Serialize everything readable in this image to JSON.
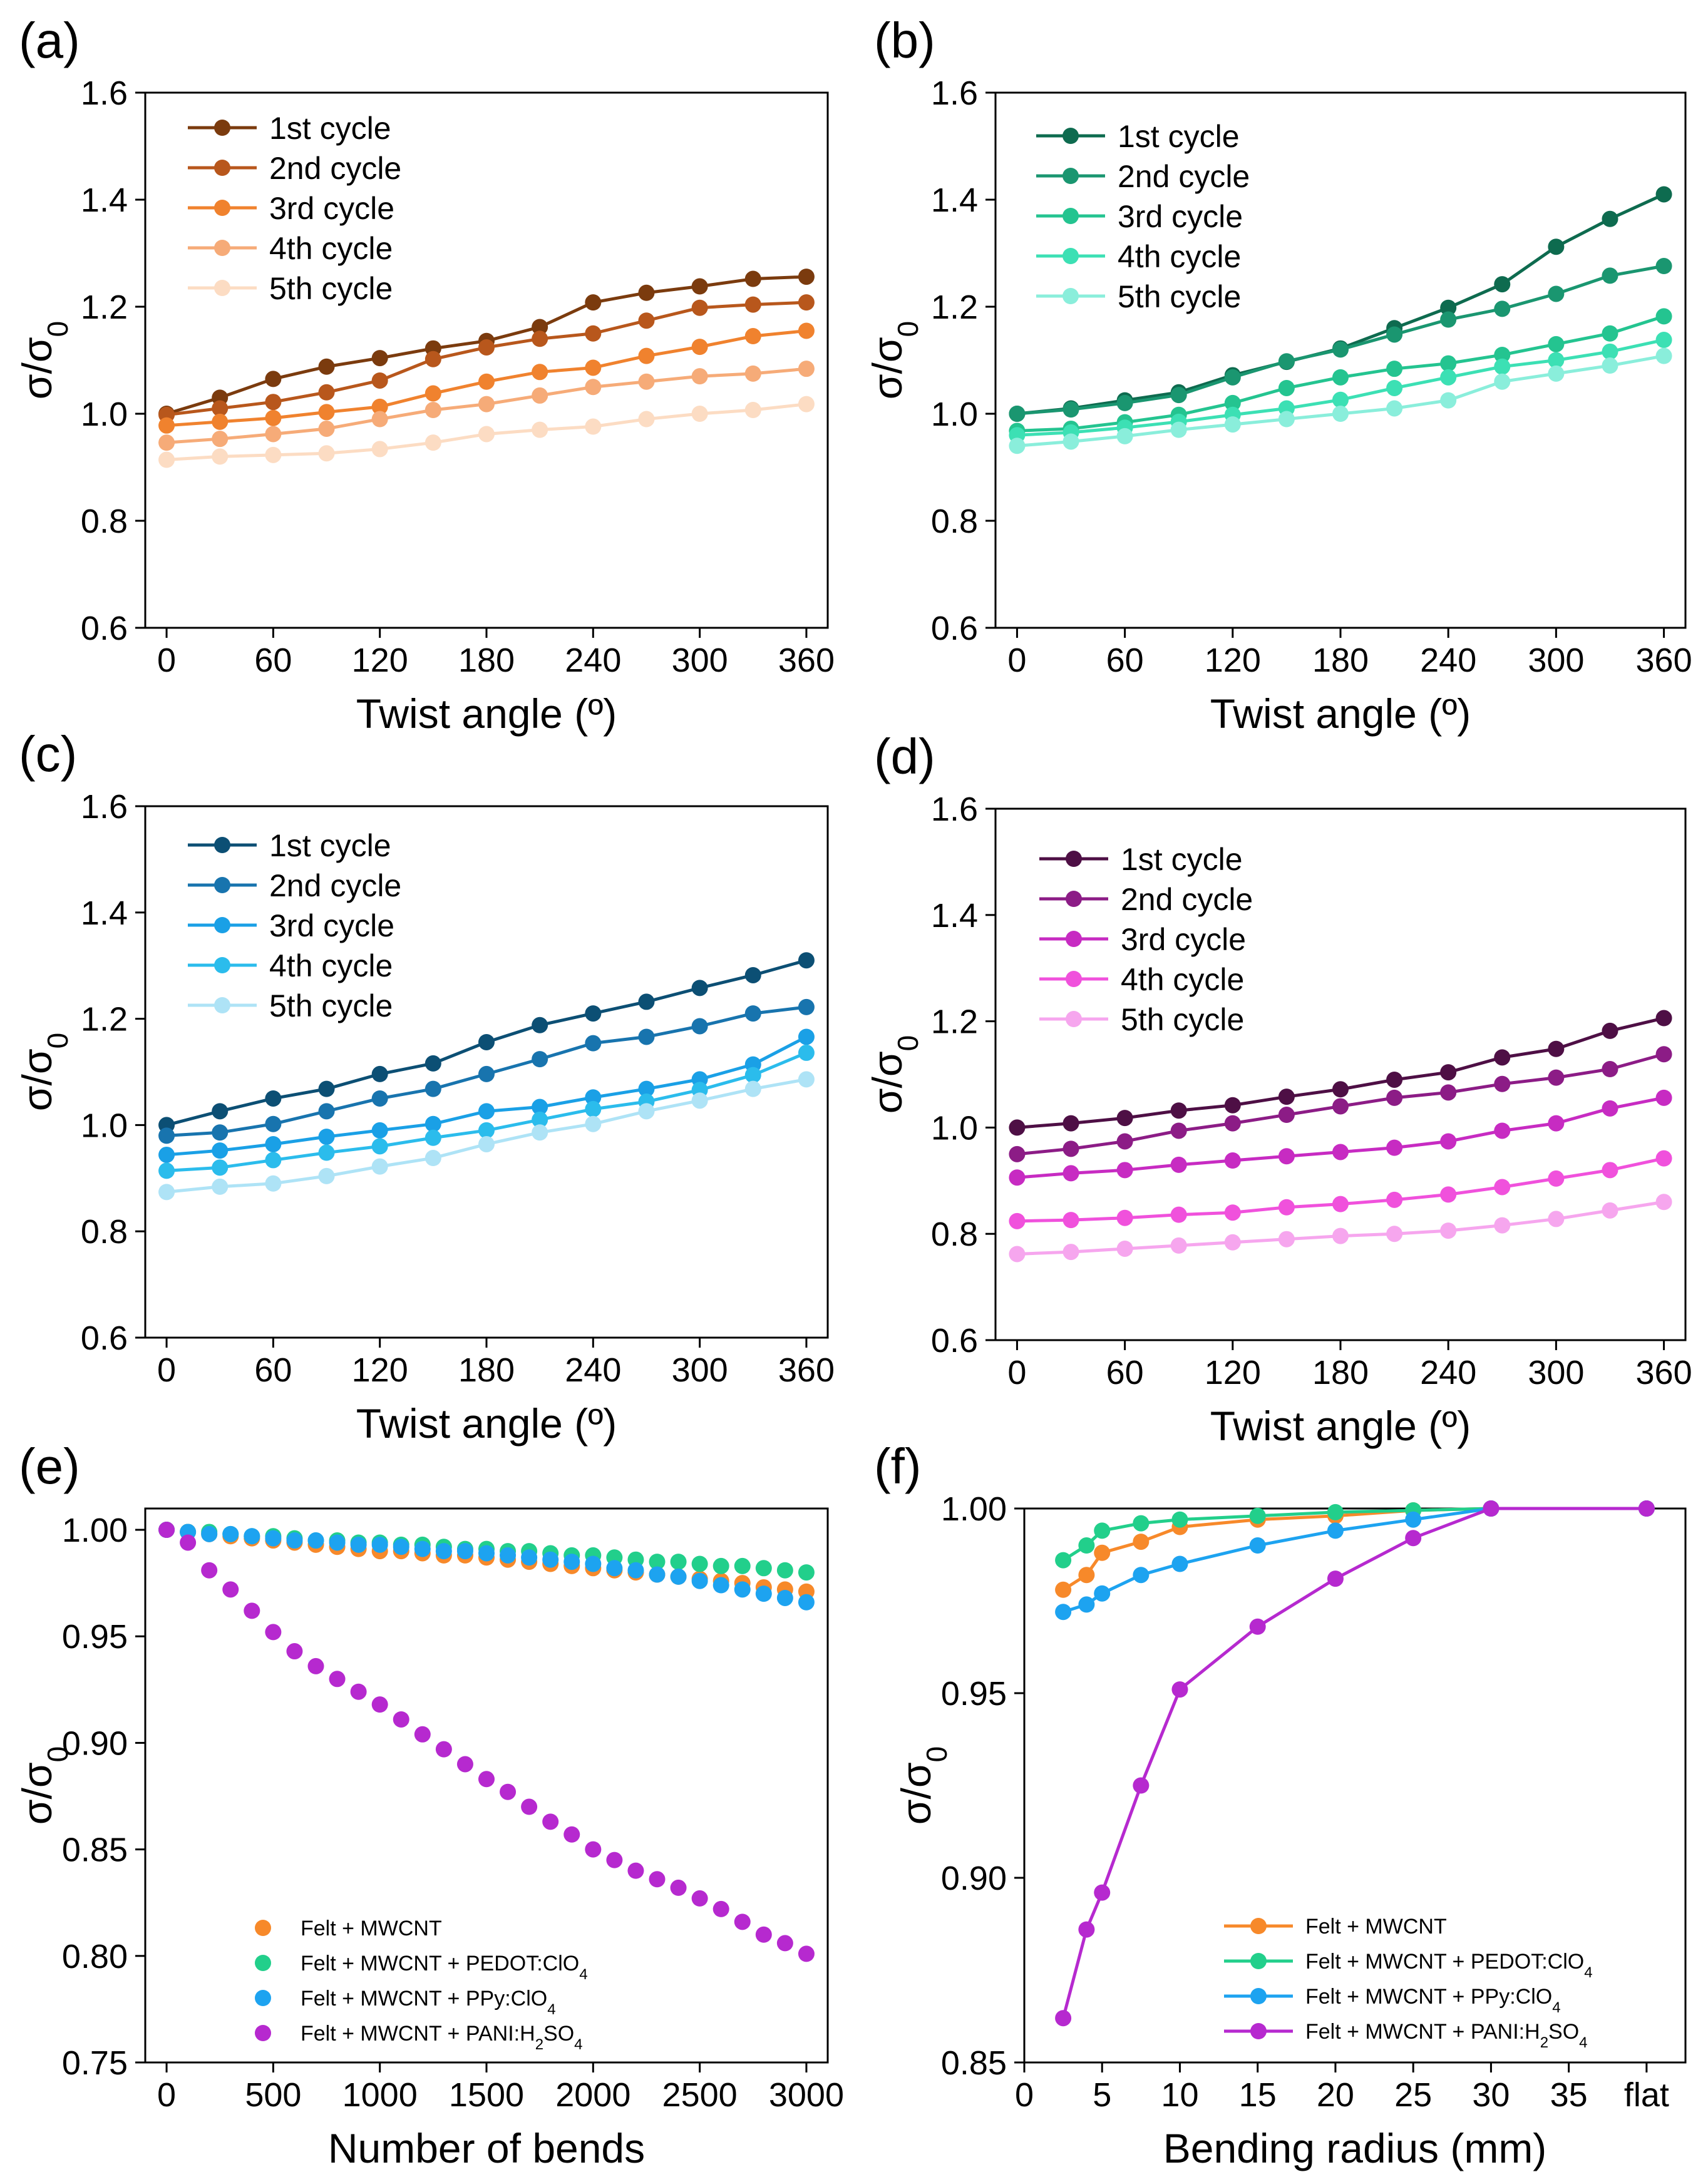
{
  "chart_data": [
    {
      "panel": "(a)",
      "type": "line",
      "xlabel": "Twist angle (º)",
      "ylabel": "σ/σ0",
      "xlim": [
        -12,
        372
      ],
      "ylim": [
        0.6,
        1.6
      ],
      "xticks": [
        0,
        60,
        120,
        180,
        240,
        300,
        360
      ],
      "yticks": [
        0.6,
        0.8,
        1.0,
        1.2,
        1.4,
        1.6
      ],
      "ytick_labels": [
        "0.6",
        "0.8",
        "1.0",
        "1.2",
        "1.4",
        "1.6"
      ],
      "legend_position": "top-left",
      "x": [
        0,
        30,
        60,
        90,
        120,
        150,
        180,
        210,
        240,
        270,
        300,
        330,
        360
      ],
      "series": [
        {
          "name": "1st cycle",
          "color": "#7b3b0e",
          "values": [
            1.0,
            1.03,
            1.065,
            1.088,
            1.104,
            1.122,
            1.136,
            1.162,
            1.208,
            1.226,
            1.238,
            1.252,
            1.256
          ]
        },
        {
          "name": "2nd cycle",
          "color": "#b8571c",
          "values": [
            0.998,
            1.01,
            1.022,
            1.04,
            1.062,
            1.102,
            1.124,
            1.14,
            1.15,
            1.174,
            1.198,
            1.204,
            1.208
          ]
        },
        {
          "name": "3rd cycle",
          "color": "#f0822e",
          "values": [
            0.978,
            0.985,
            0.992,
            1.003,
            1.013,
            1.038,
            1.06,
            1.078,
            1.086,
            1.108,
            1.125,
            1.145,
            1.155
          ]
        },
        {
          "name": "4th cycle",
          "color": "#f6ab78",
          "values": [
            0.946,
            0.953,
            0.962,
            0.972,
            0.99,
            1.007,
            1.018,
            1.034,
            1.05,
            1.06,
            1.07,
            1.075,
            1.084
          ]
        },
        {
          "name": "5th cycle",
          "color": "#fcdcc3",
          "values": [
            0.914,
            0.92,
            0.923,
            0.926,
            0.934,
            0.946,
            0.962,
            0.97,
            0.976,
            0.99,
            1.0,
            1.007,
            1.018
          ]
        }
      ]
    },
    {
      "panel": "(b)",
      "type": "line",
      "xlabel": "Twist angle (º)",
      "ylabel": "σ/σ0",
      "xlim": [
        -12,
        372
      ],
      "ylim": [
        0.6,
        1.6
      ],
      "xticks": [
        0,
        60,
        120,
        180,
        240,
        300,
        360
      ],
      "yticks": [
        0.6,
        0.8,
        1.0,
        1.2,
        1.4,
        1.6
      ],
      "ytick_labels": [
        "0.6",
        "0.8",
        "1.0",
        "1.2",
        "1.4",
        "1.6"
      ],
      "legend_position": "top-left",
      "x": [
        0,
        30,
        60,
        90,
        120,
        150,
        180,
        210,
        240,
        270,
        300,
        330,
        360
      ],
      "series": [
        {
          "name": "1st cycle",
          "color": "#0e6b4f",
          "values": [
            1.0,
            1.01,
            1.025,
            1.04,
            1.072,
            1.097,
            1.122,
            1.16,
            1.198,
            1.242,
            1.312,
            1.364,
            1.41
          ]
        },
        {
          "name": "2nd cycle",
          "color": "#1a9670",
          "values": [
            1.0,
            1.008,
            1.02,
            1.035,
            1.068,
            1.098,
            1.12,
            1.148,
            1.176,
            1.196,
            1.224,
            1.258,
            1.276
          ]
        },
        {
          "name": "3rd cycle",
          "color": "#24c490",
          "values": [
            0.968,
            0.972,
            0.984,
            0.998,
            1.02,
            1.048,
            1.068,
            1.084,
            1.094,
            1.11,
            1.13,
            1.15,
            1.182
          ]
        },
        {
          "name": "4th cycle",
          "color": "#3ce0b4",
          "values": [
            0.96,
            0.965,
            0.974,
            0.985,
            0.998,
            1.01,
            1.026,
            1.048,
            1.068,
            1.088,
            1.1,
            1.116,
            1.138
          ]
        },
        {
          "name": "5th cycle",
          "color": "#8aeedb",
          "values": [
            0.94,
            0.948,
            0.958,
            0.97,
            0.98,
            0.99,
            1.0,
            1.01,
            1.025,
            1.06,
            1.075,
            1.09,
            1.108
          ]
        }
      ]
    },
    {
      "panel": "(c)",
      "type": "line",
      "xlabel": "Twist angle (º)",
      "ylabel": "σ/σ0",
      "xlim": [
        -12,
        372
      ],
      "ylim": [
        0.6,
        1.6
      ],
      "xticks": [
        0,
        60,
        120,
        180,
        240,
        300,
        360
      ],
      "yticks": [
        0.6,
        0.8,
        1.0,
        1.2,
        1.4,
        1.6
      ],
      "ytick_labels": [
        "0.6",
        "0.8",
        "1.0",
        "1.2",
        "1.4",
        "1.6"
      ],
      "legend_position": "top-left",
      "x": [
        0,
        30,
        60,
        90,
        120,
        150,
        180,
        210,
        240,
        270,
        300,
        330,
        360
      ],
      "series": [
        {
          "name": "1st cycle",
          "color": "#0c4f74",
          "values": [
            1.0,
            1.026,
            1.05,
            1.068,
            1.096,
            1.116,
            1.156,
            1.188,
            1.21,
            1.232,
            1.258,
            1.282,
            1.31
          ]
        },
        {
          "name": "2nd cycle",
          "color": "#1874ae",
          "values": [
            0.98,
            0.986,
            1.002,
            1.026,
            1.05,
            1.068,
            1.096,
            1.124,
            1.154,
            1.166,
            1.186,
            1.21,
            1.222
          ]
        },
        {
          "name": "3rd cycle",
          "color": "#1aa0e6",
          "values": [
            0.944,
            0.952,
            0.964,
            0.978,
            0.99,
            1.002,
            1.026,
            1.034,
            1.052,
            1.068,
            1.086,
            1.114,
            1.166
          ]
        },
        {
          "name": "4th cycle",
          "color": "#2bbcec",
          "values": [
            0.914,
            0.92,
            0.934,
            0.948,
            0.96,
            0.976,
            0.99,
            1.01,
            1.03,
            1.044,
            1.066,
            1.094,
            1.136
          ]
        },
        {
          "name": "5th cycle",
          "color": "#aee3f6",
          "values": [
            0.874,
            0.884,
            0.89,
            0.904,
            0.922,
            0.938,
            0.964,
            0.986,
            1.002,
            1.026,
            1.046,
            1.068,
            1.086
          ]
        }
      ]
    },
    {
      "panel": "(d)",
      "type": "line",
      "xlabel": "Twist angle (º)",
      "ylabel": "σ/σ0",
      "xlim": [
        -12,
        372
      ],
      "ylim": [
        0.6,
        1.6
      ],
      "xticks": [
        0,
        60,
        120,
        180,
        240,
        300,
        360
      ],
      "yticks": [
        0.6,
        0.8,
        1.0,
        1.2,
        1.4,
        1.6
      ],
      "ytick_labels": [
        "0.6",
        "0.8",
        "1.0",
        "1.2",
        "1.4",
        "1.6"
      ],
      "legend_position": "top-left",
      "x": [
        0,
        30,
        60,
        90,
        120,
        150,
        180,
        210,
        240,
        270,
        300,
        330,
        360
      ],
      "series": [
        {
          "name": "1st cycle",
          "color": "#4e0f45",
          "values": [
            1.0,
            1.008,
            1.018,
            1.032,
            1.042,
            1.058,
            1.072,
            1.09,
            1.104,
            1.132,
            1.148,
            1.182,
            1.206
          ]
        },
        {
          "name": "2nd cycle",
          "color": "#8c1c86",
          "values": [
            0.95,
            0.96,
            0.974,
            0.994,
            1.008,
            1.024,
            1.04,
            1.056,
            1.066,
            1.082,
            1.094,
            1.11,
            1.138
          ]
        },
        {
          "name": "3rd cycle",
          "color": "#c72bc2",
          "values": [
            0.906,
            0.914,
            0.92,
            0.93,
            0.938,
            0.946,
            0.954,
            0.962,
            0.974,
            0.994,
            1.008,
            1.036,
            1.056
          ]
        },
        {
          "name": "4th cycle",
          "color": "#f051dc",
          "values": [
            0.824,
            0.826,
            0.83,
            0.836,
            0.84,
            0.85,
            0.856,
            0.864,
            0.874,
            0.888,
            0.904,
            0.92,
            0.942
          ]
        },
        {
          "name": "5th cycle",
          "color": "#f6a6ee",
          "values": [
            0.762,
            0.766,
            0.772,
            0.778,
            0.784,
            0.79,
            0.796,
            0.8,
            0.806,
            0.816,
            0.828,
            0.844,
            0.86
          ]
        }
      ]
    },
    {
      "panel": "(e)",
      "type": "scatter",
      "xlabel": "Number of bends",
      "ylabel": "σ/σ0",
      "xlim": [
        -100,
        3100
      ],
      "ylim": [
        0.75,
        1.01
      ],
      "xticks": [
        0,
        500,
        1000,
        1500,
        2000,
        2500,
        3000
      ],
      "yticks": [
        0.75,
        0.8,
        0.85,
        0.9,
        0.95,
        1.0
      ],
      "ytick_labels": [
        "0.75",
        "0.80",
        "0.85",
        "0.90",
        "0.95",
        "1.00"
      ],
      "legend_position": "bottom-center",
      "x": [
        0,
        100,
        200,
        300,
        400,
        500,
        600,
        700,
        800,
        900,
        1000,
        1100,
        1200,
        1300,
        1400,
        1500,
        1600,
        1700,
        1800,
        1900,
        2000,
        2100,
        2200,
        2300,
        2400,
        2500,
        2600,
        2700,
        2800,
        2900,
        3000
      ],
      "series": [
        {
          "name": "Felt + MWCNT",
          "sub": "",
          "rest": "",
          "color": "#f7892a",
          "values": [
            1.0,
            0.999,
            0.998,
            0.997,
            0.996,
            0.995,
            0.994,
            0.993,
            0.992,
            0.991,
            0.99,
            0.99,
            0.989,
            0.988,
            0.988,
            0.987,
            0.986,
            0.985,
            0.984,
            0.983,
            0.982,
            0.981,
            0.98,
            0.979,
            0.978,
            0.977,
            0.976,
            0.975,
            0.973,
            0.972,
            0.971
          ]
        },
        {
          "name": "Felt + MWCNT + PEDOT:ClO",
          "sub": "4",
          "rest": "",
          "color": "#22cf8b",
          "values": [
            1.0,
            0.999,
            0.999,
            0.998,
            0.997,
            0.997,
            0.996,
            0.995,
            0.995,
            0.994,
            0.994,
            0.993,
            0.993,
            0.992,
            0.991,
            0.991,
            0.99,
            0.99,
            0.989,
            0.988,
            0.988,
            0.987,
            0.986,
            0.985,
            0.985,
            0.984,
            0.983,
            0.983,
            0.982,
            0.981,
            0.98
          ]
        },
        {
          "name": "Felt + MWCNT + PPy:ClO",
          "sub": "4",
          "rest": "",
          "color": "#1da3f0",
          "values": [
            1.0,
            0.999,
            0.998,
            0.998,
            0.997,
            0.996,
            0.995,
            0.995,
            0.994,
            0.993,
            0.993,
            0.992,
            0.991,
            0.99,
            0.99,
            0.989,
            0.988,
            0.987,
            0.986,
            0.985,
            0.984,
            0.982,
            0.981,
            0.979,
            0.978,
            0.976,
            0.974,
            0.972,
            0.97,
            0.968,
            0.966
          ]
        },
        {
          "name": "Felt + MWCNT + PANI:H",
          "sub": "2",
          "rest": "SO",
          "sub2": "4",
          "color": "#b629cf",
          "values": [
            1.0,
            0.994,
            0.981,
            0.972,
            0.962,
            0.952,
            0.943,
            0.936,
            0.93,
            0.924,
            0.918,
            0.911,
            0.904,
            0.897,
            0.89,
            0.883,
            0.877,
            0.87,
            0.863,
            0.857,
            0.85,
            0.845,
            0.84,
            0.836,
            0.832,
            0.827,
            0.822,
            0.816,
            0.81,
            0.806,
            0.801
          ]
        }
      ]
    },
    {
      "panel": "(f)",
      "type": "line",
      "xlabel": "Bending radius (mm)",
      "ylabel": "σ/σ0",
      "xlim": [
        0,
        42.5
      ],
      "ylim": [
        0.85,
        1.0
      ],
      "xticks": [
        0,
        5,
        10,
        15,
        20,
        25,
        30,
        35,
        40
      ],
      "xtick_labels": [
        "0",
        "5",
        "10",
        "15",
        "20",
        "25",
        "30",
        "35",
        "flat"
      ],
      "yticks": [
        0.85,
        0.9,
        0.95,
        1.0
      ],
      "ytick_labels": [
        "0.85",
        "0.90",
        "0.95",
        "1.00"
      ],
      "legend_position": "bottom-right",
      "x": [
        2.5,
        4,
        5,
        7.5,
        10,
        15,
        20,
        25,
        30,
        40
      ],
      "series": [
        {
          "name": "Felt + MWCNT",
          "sub": "",
          "rest": "",
          "color": "#f7892a",
          "values": [
            0.978,
            0.982,
            0.988,
            0.991,
            0.995,
            0.997,
            0.998,
            0.9995,
            1.0,
            1.0
          ]
        },
        {
          "name": "Felt + MWCNT + PEDOT:ClO",
          "sub": "4",
          "rest": "",
          "color": "#22cf8b",
          "values": [
            0.986,
            0.99,
            0.994,
            0.996,
            0.997,
            0.998,
            0.999,
            0.9995,
            1.0,
            1.0
          ]
        },
        {
          "name": "Felt + MWCNT + PPy:ClO",
          "sub": "4",
          "rest": "",
          "color": "#1da3f0",
          "values": [
            0.972,
            0.974,
            0.977,
            0.982,
            0.985,
            0.99,
            0.994,
            0.997,
            1.0,
            1.0
          ]
        },
        {
          "name": "Felt + MWCNT + PANI:H",
          "sub": "2",
          "rest": "SO",
          "sub2": "4",
          "color": "#b629cf",
          "values": [
            0.862,
            0.886,
            0.896,
            0.925,
            0.951,
            0.968,
            0.981,
            0.992,
            1.0,
            1.0
          ]
        }
      ]
    }
  ]
}
